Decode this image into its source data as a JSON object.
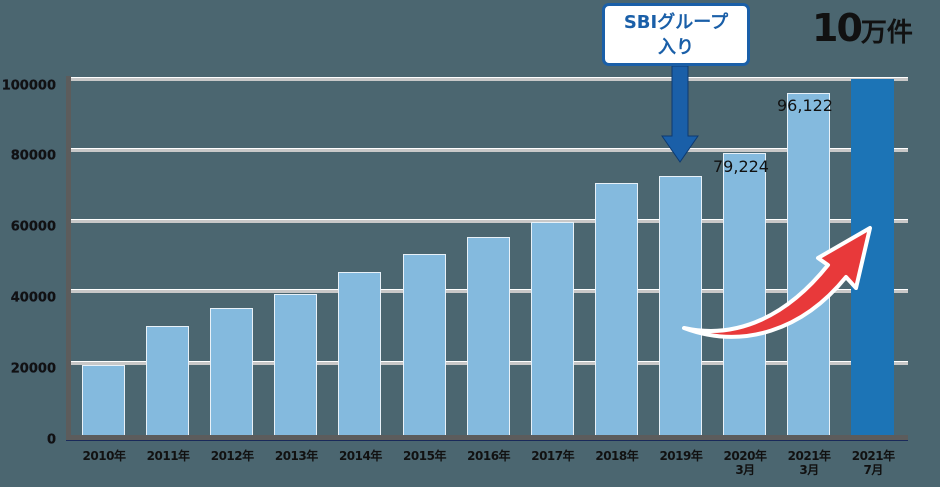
{
  "chart_data": {
    "type": "bar",
    "title": "",
    "xlabel": "",
    "ylabel": "",
    "ylim": [
      0,
      100000
    ],
    "yticks": [
      0,
      20000,
      40000,
      60000,
      80000,
      100000
    ],
    "grid": true,
    "categories": [
      "2010年",
      "2011年",
      "2012年",
      "2013年",
      "2014年",
      "2015年",
      "2016年",
      "2017年",
      "2018年",
      "2019年",
      "2020年 3月",
      "2021年 3月",
      "2021年 7月"
    ],
    "values": [
      20000,
      31000,
      36000,
      40000,
      46000,
      51000,
      56000,
      60000,
      71000,
      73000,
      79224,
      96122,
      100000
    ],
    "data_labels": {
      "10": "79,224",
      "11": "96,122"
    },
    "highlight_index": 12,
    "colors": {
      "bar": "#84bade",
      "highlight": "#1c74b6",
      "background": "#4b6670",
      "callout": "#1a5fa8",
      "arrow": "#e8393a"
    },
    "annotations": [
      {
        "text": "SBIグループ入り",
        "target": "2019年",
        "type": "callout-arrow"
      },
      {
        "text": "10万件",
        "target": "2021年 7月",
        "type": "headline"
      },
      {
        "type": "red-curved-arrow",
        "direction": "up-right"
      }
    ]
  },
  "labels": {
    "yticks": [
      "100000",
      "80000",
      "60000",
      "40000",
      "20000",
      "0"
    ],
    "x": [
      {
        "l1": "2010年",
        "l2": ""
      },
      {
        "l1": "2011年",
        "l2": ""
      },
      {
        "l1": "2012年",
        "l2": ""
      },
      {
        "l1": "2013年",
        "l2": ""
      },
      {
        "l1": "2014年",
        "l2": ""
      },
      {
        "l1": "2015年",
        "l2": ""
      },
      {
        "l1": "2016年",
        "l2": ""
      },
      {
        "l1": "2017年",
        "l2": ""
      },
      {
        "l1": "2018年",
        "l2": ""
      },
      {
        "l1": "2019年",
        "l2": ""
      },
      {
        "l1": "2020年",
        "l2": "3月"
      },
      {
        "l1": "2021年",
        "l2": "3月"
      },
      {
        "l1": "2021年",
        "l2": "7月"
      }
    ],
    "value_2020": "79,224",
    "value_2021_3": "96,122",
    "callout_line1": "SBIグループ",
    "callout_line2": "入り",
    "headline_num": "10",
    "headline_unit": "万件"
  }
}
